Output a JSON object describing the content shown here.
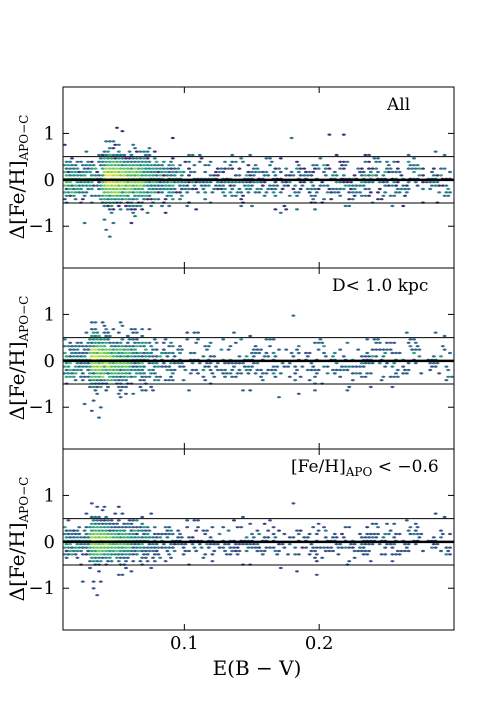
{
  "chart_data": {
    "type": "heatmap",
    "description_kind": "hexbin density (3 stacked panels, shared x axis)",
    "colormap": [
      "#440154",
      "#3b528b",
      "#21918c",
      "#5ec962",
      "#fde725"
    ],
    "xlabel": "E(B − V)",
    "xlim": [
      0.01,
      0.3
    ],
    "x_ticks": [
      0.1,
      0.2
    ],
    "x_tick_labels": [
      "0.1",
      "0.2"
    ],
    "reference_lines": {
      "zero": 0,
      "upper": 0.5,
      "lower": -0.5
    },
    "panels": [
      {
        "annotation": "All",
        "ylabel": "Δ[Fe/H]",
        "ylabel_sub": "APO−C",
        "ylim": [
          -1.9,
          2.0
        ],
        "y_ticks": [
          -1,
          0,
          1
        ],
        "y_tick_labels": [
          "−1",
          "0",
          "1"
        ],
        "density_peak_x": 0.04,
        "scatter_spread": 0.22,
        "grid": false
      },
      {
        "annotation": "D< 1.0 kpc",
        "ylabel": "Δ[Fe/H]",
        "ylabel_sub": "APO−C",
        "ylim": [
          -1.9,
          2.0
        ],
        "y_ticks": [
          -1,
          0,
          1
        ],
        "y_tick_labels": [
          "−1",
          "0",
          "1"
        ],
        "density_peak_x": 0.03,
        "scatter_spread": 0.24,
        "grid": false
      },
      {
        "annotation_main": "[Fe/H]",
        "annotation_sub": "APO",
        "annotation_tail": " < −0.6",
        "ylabel": "Δ[Fe/H]",
        "ylabel_sub": "APO−C",
        "ylim": [
          -1.9,
          2.0
        ],
        "y_ticks": [
          -1,
          0,
          1
        ],
        "y_tick_labels": [
          "−1",
          "0",
          "1"
        ],
        "density_peak_x": 0.03,
        "scatter_spread": 0.18,
        "grid": false
      }
    ]
  }
}
